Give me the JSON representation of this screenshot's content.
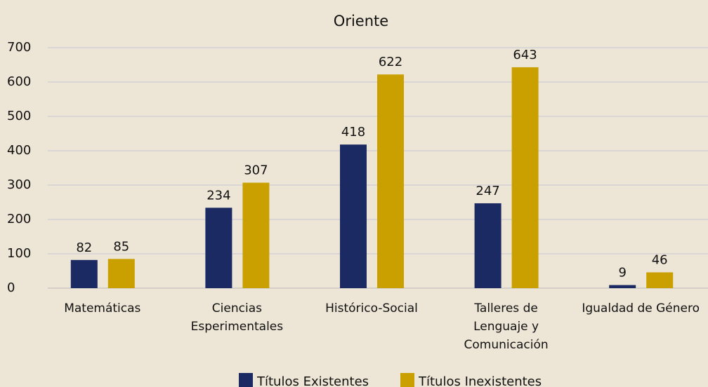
{
  "chart_data": {
    "type": "bar",
    "title": "Oriente",
    "categories": [
      "Matemáticas",
      "Ciencias Esperimentales",
      "Histórico-Social",
      "Talleres de Lenguaje y Comunicación",
      "Igualdad de Género"
    ],
    "series": [
      {
        "name": "Títulos Existentes",
        "color": "#1b2a63",
        "values": [
          82,
          234,
          418,
          247,
          9
        ]
      },
      {
        "name": "Títulos Inexistentes",
        "color": "#c9a000",
        "values": [
          85,
          307,
          622,
          643,
          46
        ]
      }
    ],
    "ylim": [
      0,
      700
    ],
    "yticks": [
      0,
      100,
      200,
      300,
      400,
      500,
      600,
      700
    ],
    "grid": true,
    "legend": "bottom"
  }
}
